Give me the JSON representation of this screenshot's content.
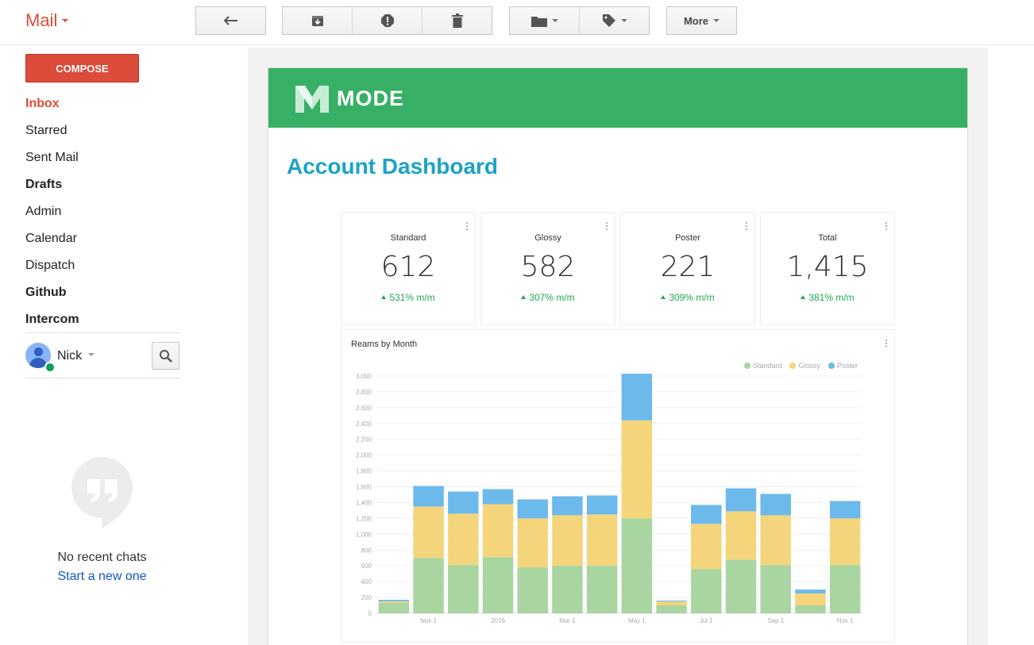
{
  "app": {
    "title": "Mail"
  },
  "toolbar": {
    "more_label": "More"
  },
  "compose_label": "COMPOSE",
  "nav": [
    {
      "label": "Inbox",
      "style": "active"
    },
    {
      "label": "Starred",
      "style": "normal"
    },
    {
      "label": "Sent Mail",
      "style": "normal"
    },
    {
      "label": "Drafts",
      "style": "bold"
    },
    {
      "label": "Admin",
      "style": "normal"
    },
    {
      "label": "Calendar",
      "style": "normal"
    },
    {
      "label": "Dispatch",
      "style": "normal"
    },
    {
      "label": "Github",
      "style": "bold"
    },
    {
      "label": "Intercom",
      "style": "bold"
    }
  ],
  "user": {
    "name": "Nick"
  },
  "chats": {
    "empty_text": "No recent chats",
    "start_link": "Start a new one"
  },
  "email": {
    "brand": "MODE",
    "heading": "Account Dashboard",
    "kpis": [
      {
        "label": "Standard",
        "value": "612",
        "change": "531% m/m"
      },
      {
        "label": "Glossy",
        "value": "582",
        "change": "307% m/m"
      },
      {
        "label": "Poster",
        "value": "221",
        "change": "309% m/m"
      },
      {
        "label": "Total",
        "value": "1,415",
        "change": "381% m/m"
      }
    ],
    "chart_title": "Reams by Month"
  },
  "colors": {
    "standard": "#a8d5a0",
    "glossy": "#f5d57b",
    "poster": "#6cb9ec",
    "brand_green": "#37b066",
    "heading_blue": "#1ba3c6",
    "gmail_red": "#dd4b39"
  },
  "chart_data": {
    "type": "bar",
    "stacked": true,
    "title": "Reams by Month",
    "legend_position": "top-right",
    "grid": true,
    "ylim": [
      0,
      3000
    ],
    "y_ticks": [
      "0",
      "200",
      "400",
      "600",
      "800",
      "1,000",
      "1,200",
      "1,400",
      "1,600",
      "1,800",
      "2,000",
      "2,200",
      "2,400",
      "2,600",
      "2,800",
      "3,000"
    ],
    "x_tick_labels": [
      {
        "index": 1,
        "label": "Nov 1"
      },
      {
        "index": 3,
        "label": "2016"
      },
      {
        "index": 5,
        "label": "Mar 1"
      },
      {
        "index": 7,
        "label": "May 1"
      },
      {
        "index": 9,
        "label": "Jul 1"
      },
      {
        "index": 11,
        "label": "Sep 1"
      },
      {
        "index": 13,
        "label": "Nov 1"
      }
    ],
    "series": [
      {
        "name": "Standard",
        "values": [
          130,
          700,
          610,
          710,
          580,
          600,
          600,
          1200,
          100,
          560,
          680,
          610,
          100,
          610
        ]
      },
      {
        "name": "Glossy",
        "values": [
          20,
          650,
          650,
          670,
          620,
          640,
          650,
          1240,
          50,
          570,
          610,
          630,
          150,
          590
        ]
      },
      {
        "name": "Poster",
        "values": [
          20,
          260,
          280,
          190,
          240,
          240,
          240,
          590,
          10,
          240,
          290,
          270,
          50,
          220
        ]
      }
    ]
  }
}
